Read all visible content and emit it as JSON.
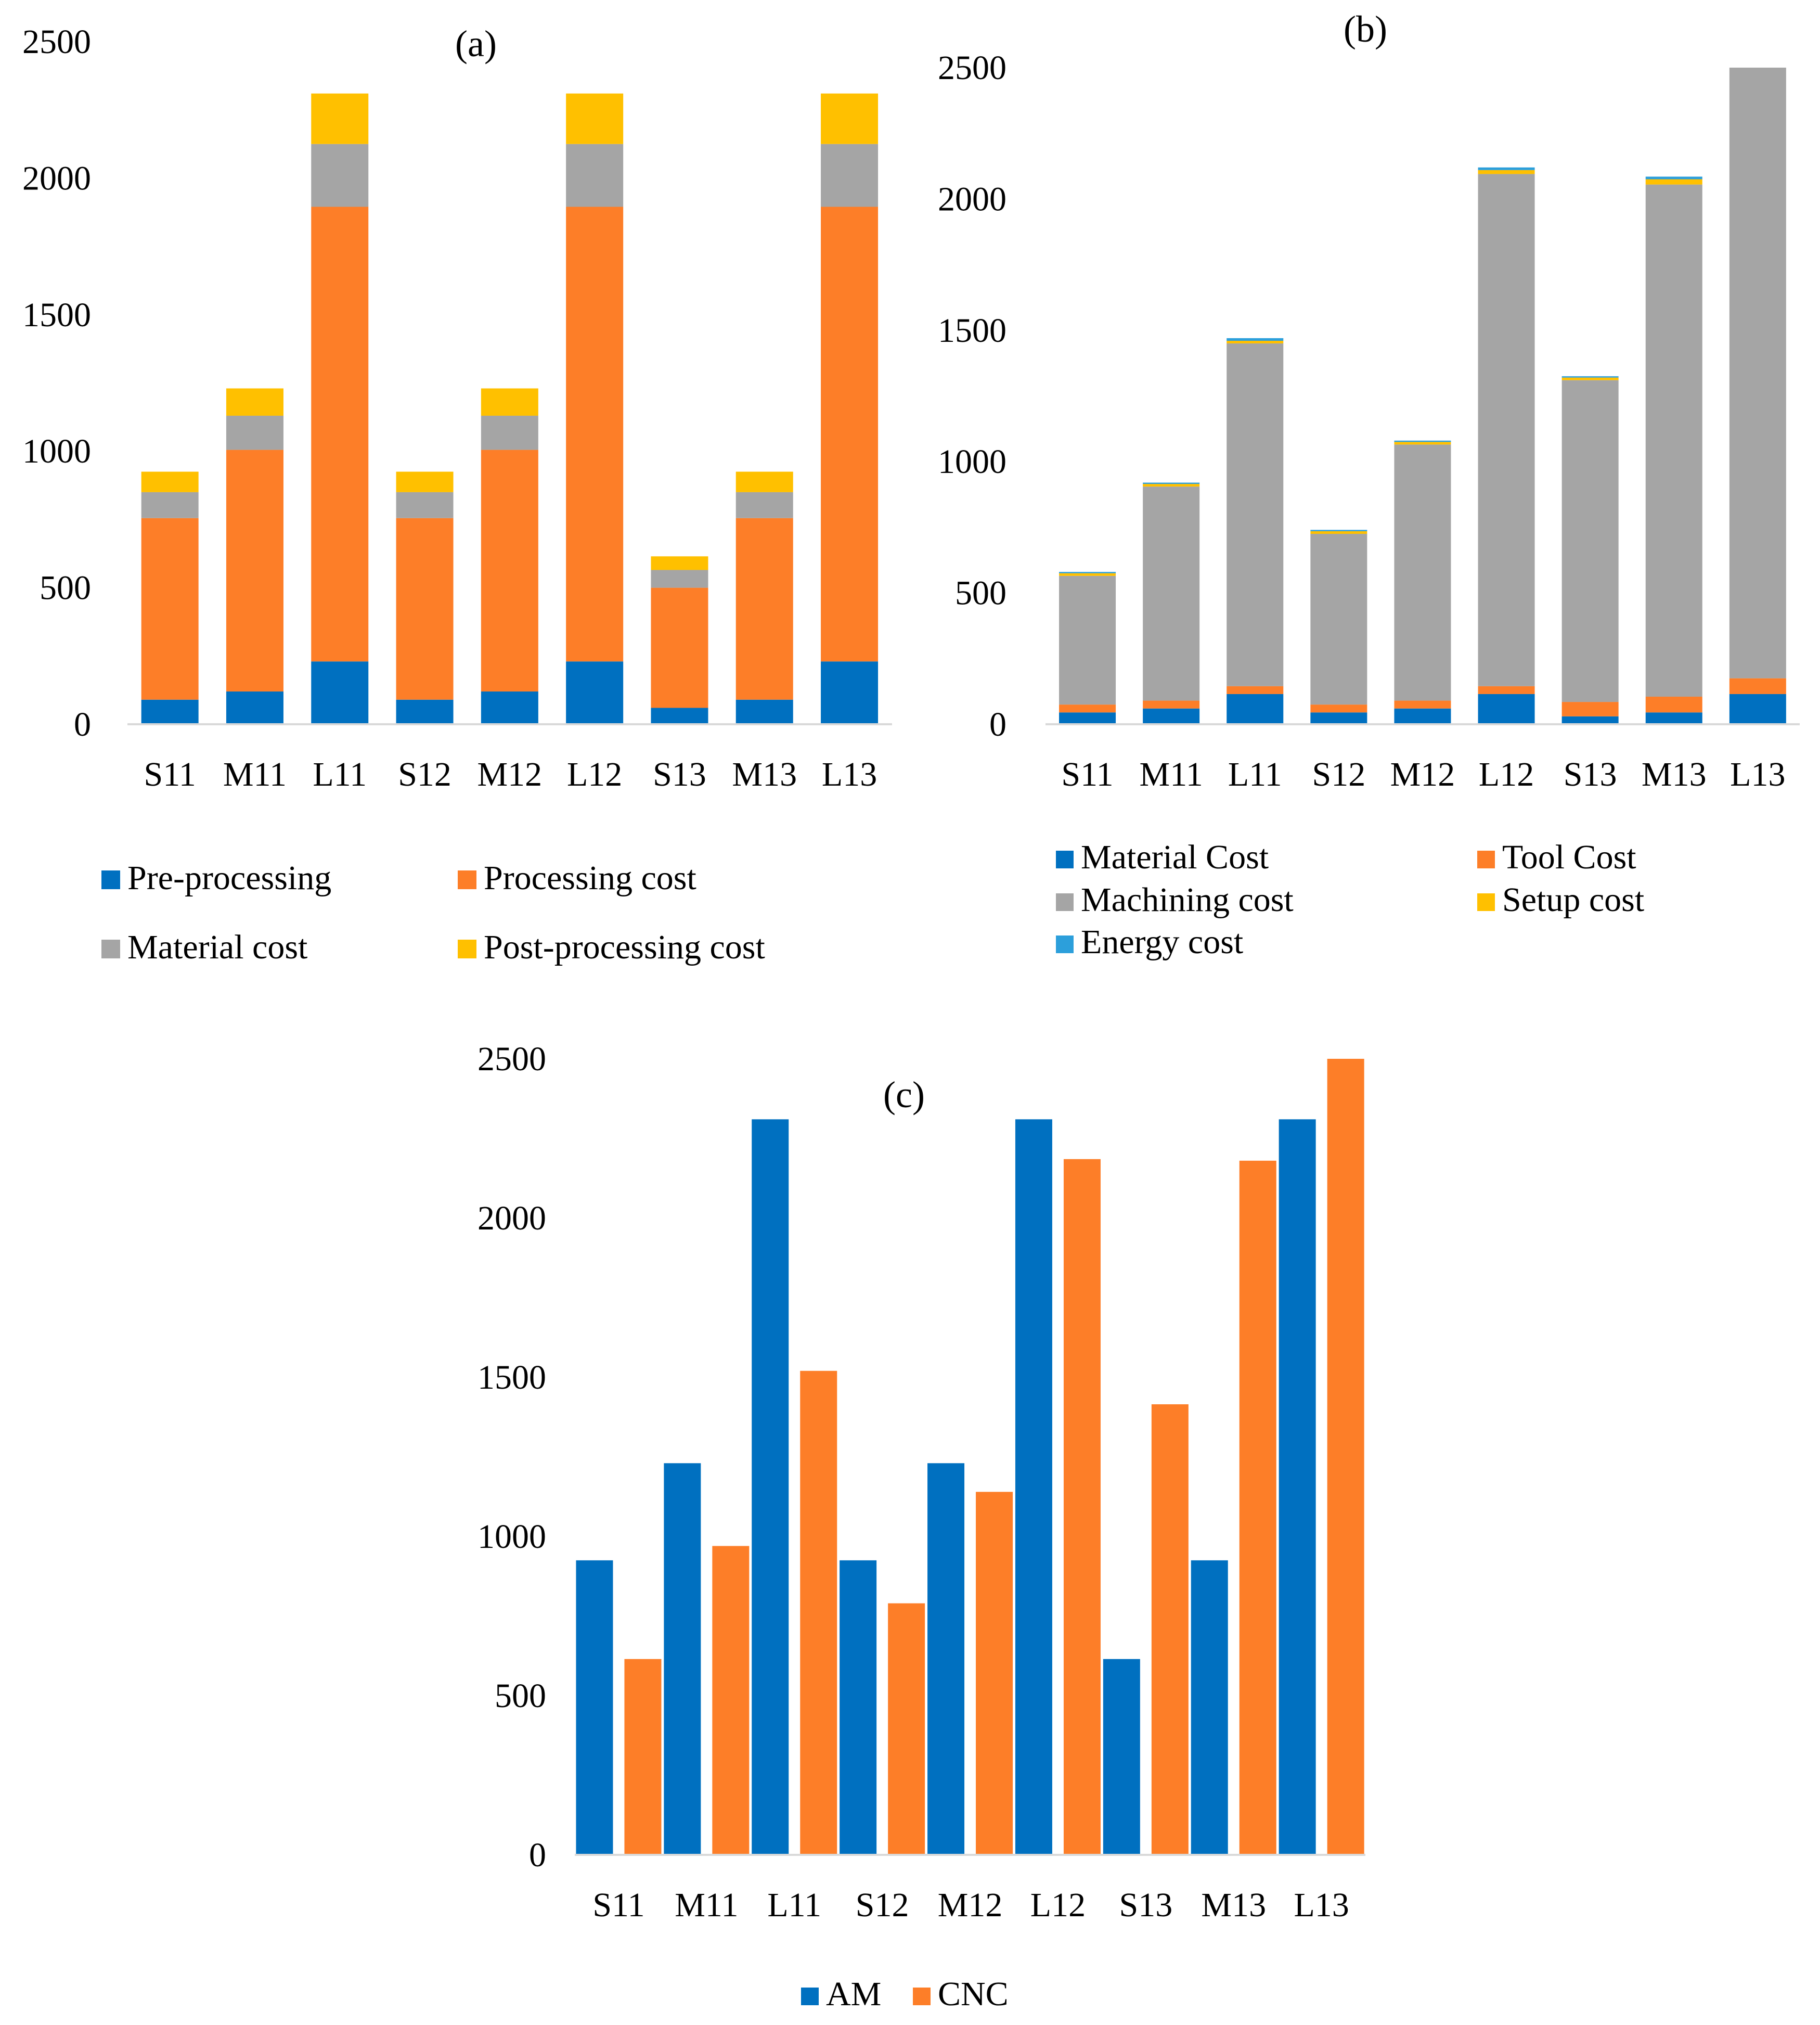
{
  "chart_data": [
    {
      "id": "a",
      "type": "bar",
      "stacked": true,
      "title": "(a)",
      "xlabel": "",
      "ylabel": "",
      "ylim": [
        0,
        2500
      ],
      "yticks": [
        0,
        500,
        1000,
        1500,
        2000,
        2500
      ],
      "categories": [
        "S11",
        "M11",
        "L11",
        "S12",
        "M12",
        "L12",
        "S13",
        "M13",
        "L13"
      ],
      "legend_position": "bottom",
      "series": [
        {
          "name": "Pre-processing",
          "color": "#0070c0",
          "values": [
            90,
            120,
            230,
            90,
            120,
            230,
            60,
            90,
            230
          ]
        },
        {
          "name": "Processing cost",
          "color": "#fd7e28",
          "values": [
            665,
            885,
            1665,
            665,
            885,
            1665,
            440,
            665,
            1665
          ]
        },
        {
          "name": "Material cost",
          "color": "#a5a5a5",
          "values": [
            95,
            125,
            230,
            95,
            125,
            230,
            65,
            95,
            230
          ]
        },
        {
          "name": "Post-processing cost",
          "color": "#ffc000",
          "values": [
            75,
            100,
            185,
            75,
            100,
            185,
            50,
            75,
            185
          ]
        }
      ]
    },
    {
      "id": "b",
      "type": "bar",
      "stacked": true,
      "title": "(b)",
      "xlabel": "",
      "ylabel": "",
      "ylim": [
        0,
        2500
      ],
      "yticks": [
        0,
        500,
        1000,
        1500,
        2000,
        2500
      ],
      "categories": [
        "S11",
        "M11",
        "L11",
        "S12",
        "M12",
        "L12",
        "S13",
        "M13",
        "L13"
      ],
      "legend_position": "bottom",
      "series": [
        {
          "name": "Material Cost",
          "color": "#0070c0",
          "values": [
            45,
            60,
            115,
            45,
            60,
            115,
            30,
            45,
            115
          ]
        },
        {
          "name": "Tool Cost",
          "color": "#fd7e28",
          "values": [
            30,
            30,
            30,
            30,
            30,
            30,
            55,
            60,
            60
          ]
        },
        {
          "name": "Machining cost",
          "color": "#a5a5a5",
          "values": [
            490,
            815,
            1305,
            650,
            975,
            1950,
            1225,
            1950,
            2325
          ]
        },
        {
          "name": "Setup cost",
          "color": "#ffc000",
          "values": [
            10,
            10,
            10,
            10,
            10,
            15,
            10,
            20,
            0
          ]
        },
        {
          "name": "Energy cost",
          "color": "#2c9fdb",
          "values": [
            5,
            5,
            10,
            5,
            5,
            10,
            5,
            10,
            0
          ]
        }
      ]
    },
    {
      "id": "c",
      "type": "bar",
      "stacked": false,
      "title": "(c)",
      "xlabel": "",
      "ylabel": "",
      "ylim": [
        0,
        2500
      ],
      "yticks": [
        0,
        500,
        1000,
        1500,
        2000,
        2500
      ],
      "categories": [
        "S11",
        "M11",
        "L11",
        "S12",
        "M12",
        "L12",
        "S13",
        "M13",
        "L13"
      ],
      "legend_position": "bottom",
      "series": [
        {
          "name": "AM",
          "color": "#0070c0",
          "values": [
            925,
            1230,
            2310,
            925,
            1230,
            2310,
            615,
            925,
            2310
          ]
        },
        {
          "name": "CNC",
          "color": "#fd7e28",
          "values": [
            615,
            970,
            1520,
            790,
            1140,
            2185,
            1415,
            2180,
            2500
          ]
        }
      ]
    }
  ]
}
